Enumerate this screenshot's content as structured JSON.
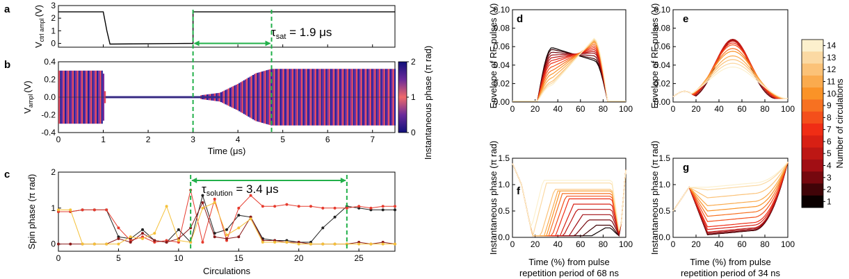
{
  "chart_data": [
    {
      "id": "a",
      "type": "line",
      "panel_label": "a",
      "ylabel": "V",
      "ylabel_sub": "ctrl ampl",
      "ylabel_unit": "(V)",
      "xlim": [
        0,
        7.5
      ],
      "ylim": [
        -0.3,
        3
      ],
      "yticks": [
        "3",
        "2",
        "1",
        "0"
      ],
      "series": [
        {
          "x": [
            0,
            1.0,
            1.08,
            1.15,
            3.0,
            3.0,
            7.5
          ],
          "y": [
            2.5,
            2.5,
            1.0,
            -0.05,
            0.0,
            2.5,
            2.5
          ]
        }
      ],
      "annotation": {
        "text": "τ",
        "sub": "sat",
        "rest": " = 1.9 μs",
        "from": 3.0,
        "to": 4.75
      }
    },
    {
      "id": "b",
      "type": "line",
      "panel_label": "b",
      "ylabel": "V",
      "ylabel_sub": "ampl",
      "ylabel_unit": "(V)",
      "xlabel": "Time (μs)",
      "xlim": [
        0,
        7.5
      ],
      "ylim": [
        -0.4,
        0.4
      ],
      "xticks": [
        "0",
        "1",
        "2",
        "3",
        "4",
        "5",
        "6",
        "7"
      ],
      "yticks": [
        "0.4",
        "0.2",
        "0.0",
        "-0.2",
        "-0.4"
      ],
      "pulse_period_us": 0.068,
      "envelope": {
        "x": [
          0,
          1.0,
          1.05,
          3.0,
          3.6,
          4.0,
          4.4,
          4.75,
          7.5
        ],
        "amp": [
          0.3,
          0.3,
          0.01,
          0.01,
          0.05,
          0.15,
          0.27,
          0.32,
          0.32
        ]
      },
      "colorbar": {
        "label": "Instantaneous phase (π rad)",
        "ticks": [
          "2",
          "1",
          "0"
        ],
        "range": [
          0,
          2
        ],
        "colors": [
          "#1a1a8c",
          "#f06a6a",
          "#2a2a9a"
        ]
      },
      "markers": [
        3.0,
        4.75
      ]
    },
    {
      "id": "c",
      "type": "line",
      "panel_label": "c",
      "ylabel": "Spin phase (π rad)",
      "xlabel": "Circulations",
      "xlim": [
        0,
        28
      ],
      "ylim": [
        -0.2,
        2
      ],
      "xticks": [
        "0",
        "5",
        "10",
        "15",
        "20",
        "25"
      ],
      "yticks": [
        "2",
        "1",
        "0"
      ],
      "annotation": {
        "text": "τ",
        "sub": "solution",
        "rest": " = 3.4 μs",
        "from": 11,
        "to": 24
      },
      "series": [
        {
          "color": "#222222",
          "x": [
            0,
            1,
            2,
            3,
            4,
            5,
            6,
            7,
            8,
            9,
            10,
            11,
            12,
            13,
            14,
            15,
            16,
            17,
            18,
            19,
            20,
            21,
            22,
            23,
            24,
            25,
            26,
            27,
            28
          ],
          "y": [
            0.9,
            0.9,
            0.95,
            0.95,
            0.95,
            0.2,
            0.15,
            0.4,
            0.1,
            0.05,
            0.4,
            0.05,
            1.35,
            0.3,
            0.4,
            0.8,
            0.75,
            0.15,
            0.1,
            0.1,
            0.05,
            0.05,
            0.45,
            0.75,
            1.05,
            1.0,
            0.95,
            0.95,
            0.95
          ]
        },
        {
          "color": "#e63b2e",
          "x": [
            0,
            1,
            2,
            3,
            4,
            5,
            6,
            7,
            8,
            9,
            10,
            11,
            12,
            13,
            14,
            15,
            16,
            17,
            18,
            19,
            20,
            21,
            22,
            23,
            24,
            25,
            26,
            27,
            28
          ],
          "y": [
            0.9,
            0.9,
            0.95,
            0.95,
            0.95,
            0.45,
            0.1,
            0.2,
            0.05,
            0.1,
            0.05,
            1.5,
            0.05,
            1.25,
            0.1,
            1.0,
            1.35,
            1.05,
            1.05,
            1.1,
            1.05,
            1.05,
            1.0,
            1.0,
            1.0,
            1.05,
            1.0,
            1.05,
            1.05
          ]
        },
        {
          "color": "#8b1a1a",
          "x": [
            0,
            1,
            2,
            3,
            4,
            5,
            6,
            7,
            8,
            9,
            10,
            11,
            12,
            13,
            14,
            15,
            16,
            17,
            18,
            19,
            20,
            21,
            22,
            23,
            24,
            25,
            26,
            27,
            28
          ],
          "y": [
            0.0,
            0.0,
            0.0,
            0.0,
            0.0,
            0.15,
            0.05,
            0.3,
            0.1,
            0.05,
            0.15,
            0.45,
            1.15,
            0.2,
            0.15,
            0.2,
            0.75,
            0.1,
            0.1,
            0.05,
            0.05,
            0.0,
            0.0,
            0.0,
            0.0,
            0.05,
            0.0,
            0.05,
            0.0
          ]
        },
        {
          "color": "#f5c13a",
          "x": [
            0,
            1,
            2,
            3,
            4,
            5,
            6,
            7,
            8,
            9,
            10,
            11,
            12,
            13,
            14,
            15,
            16,
            17,
            18,
            19,
            20,
            21,
            22,
            23,
            24,
            25,
            26,
            27,
            28
          ],
          "y": [
            0.95,
            0.95,
            0.0,
            0.0,
            0.0,
            0.0,
            0.2,
            0.15,
            0.3,
            1.05,
            0.1,
            0.05,
            1.0,
            1.15,
            0.25,
            0.45,
            0.7,
            0.05,
            0.05,
            0.05,
            0.0,
            0.0,
            0.0,
            0.0,
            0.0,
            0.0,
            0.0,
            0.0,
            0.0
          ]
        }
      ]
    },
    {
      "id": "d",
      "type": "line",
      "panel_label": "d",
      "ylabel": "Envelope of RF pulses (V)",
      "xlim": [
        0,
        100
      ],
      "ylim": [
        0,
        0.1
      ],
      "xticks": [
        "0",
        "20",
        "40",
        "60",
        "80",
        "100"
      ],
      "yticks": [
        "0.10",
        "0.08",
        "0.06",
        "0.04",
        "0.02",
        "0.00"
      ],
      "curves": {
        "onset": 22,
        "offset": 84,
        "rise_end": 35,
        "fall_start": 72,
        "left_peak": [
          0.059,
          0.057,
          0.054,
          0.051,
          0.048,
          0.045,
          0.042,
          0.038,
          0.034,
          0.03,
          0.026,
          0.022,
          0.02,
          0.018
        ],
        "right_peak": [
          0.045,
          0.047,
          0.05,
          0.053,
          0.055,
          0.057,
          0.059,
          0.061,
          0.063,
          0.065,
          0.066,
          0.067,
          0.068,
          0.069
        ]
      }
    },
    {
      "id": "e",
      "type": "line",
      "panel_label": "e",
      "ylabel": "Envelope of RF pulses (V)",
      "xlim": [
        0,
        100
      ],
      "ylim": [
        0,
        0.1
      ],
      "xticks": [
        "0",
        "20",
        "40",
        "60",
        "80",
        "100"
      ],
      "yticks": [
        "0.10",
        "0.08",
        "0.06",
        "0.04",
        "0.02",
        "0.00"
      ],
      "curves": {
        "peak_x": 52,
        "base": 0.013,
        "peaks": [
          0.068,
          0.067,
          0.066,
          0.067,
          0.068,
          0.066,
          0.064,
          0.062,
          0.058,
          0.055,
          0.05,
          0.046,
          0.042,
          0.038
        ],
        "width": [
          21,
          21,
          21,
          22,
          22,
          23,
          23,
          24,
          25,
          26,
          27,
          28,
          29,
          30
        ]
      }
    },
    {
      "id": "f",
      "type": "line",
      "panel_label": "f",
      "ylabel": "Instantaneous phase (π rad)",
      "xlabel": "Time (%) from pulse",
      "xlabel2": "repetition period of 68 ns",
      "xlim": [
        0,
        100
      ],
      "ylim": [
        0,
        1.5
      ],
      "xticks": [
        "0",
        "20",
        "40",
        "60",
        "80",
        "100"
      ],
      "yticks": [
        "1.5",
        "1.0",
        "0.5",
        "0.0"
      ],
      "curves": {
        "plateau": [
          0.15,
          0.2,
          0.3,
          0.4,
          0.5,
          0.6,
          0.7,
          0.75,
          0.8,
          0.85,
          0.85,
          0.88,
          1.0,
          1.05
        ],
        "plateau_start": [
          70,
          62,
          55,
          50,
          45,
          42,
          38,
          35,
          32,
          30,
          28,
          25,
          18,
          15
        ]
      }
    },
    {
      "id": "g",
      "type": "line",
      "panel_label": "g",
      "ylabel": "Instantaneous phase (π rad)",
      "xlabel": "Time (%) from pulse",
      "xlabel2": "repetition period of 34 ns",
      "xlim": [
        0,
        100
      ],
      "ylim": [
        0,
        1.5
      ],
      "xticks": [
        "0",
        "20",
        "40",
        "60",
        "80",
        "100"
      ],
      "yticks": [
        "1.5",
        "1.0",
        "0.5",
        "0.0"
      ],
      "curves": {
        "floor": [
          0.05,
          0.05,
          0.06,
          0.08,
          0.1,
          0.15,
          0.2,
          0.3,
          0.4,
          0.5,
          0.6,
          0.75,
          0.9,
          0.95
        ]
      }
    },
    {
      "id": "colorbar_circ",
      "type": "colorbar",
      "label": "Number of circulations",
      "ticks": [
        "14",
        "13",
        "12",
        "11",
        "10",
        "9",
        "8",
        "7",
        "6",
        "5",
        "4",
        "3",
        "2",
        "1"
      ],
      "range": [
        1,
        14
      ]
    }
  ]
}
